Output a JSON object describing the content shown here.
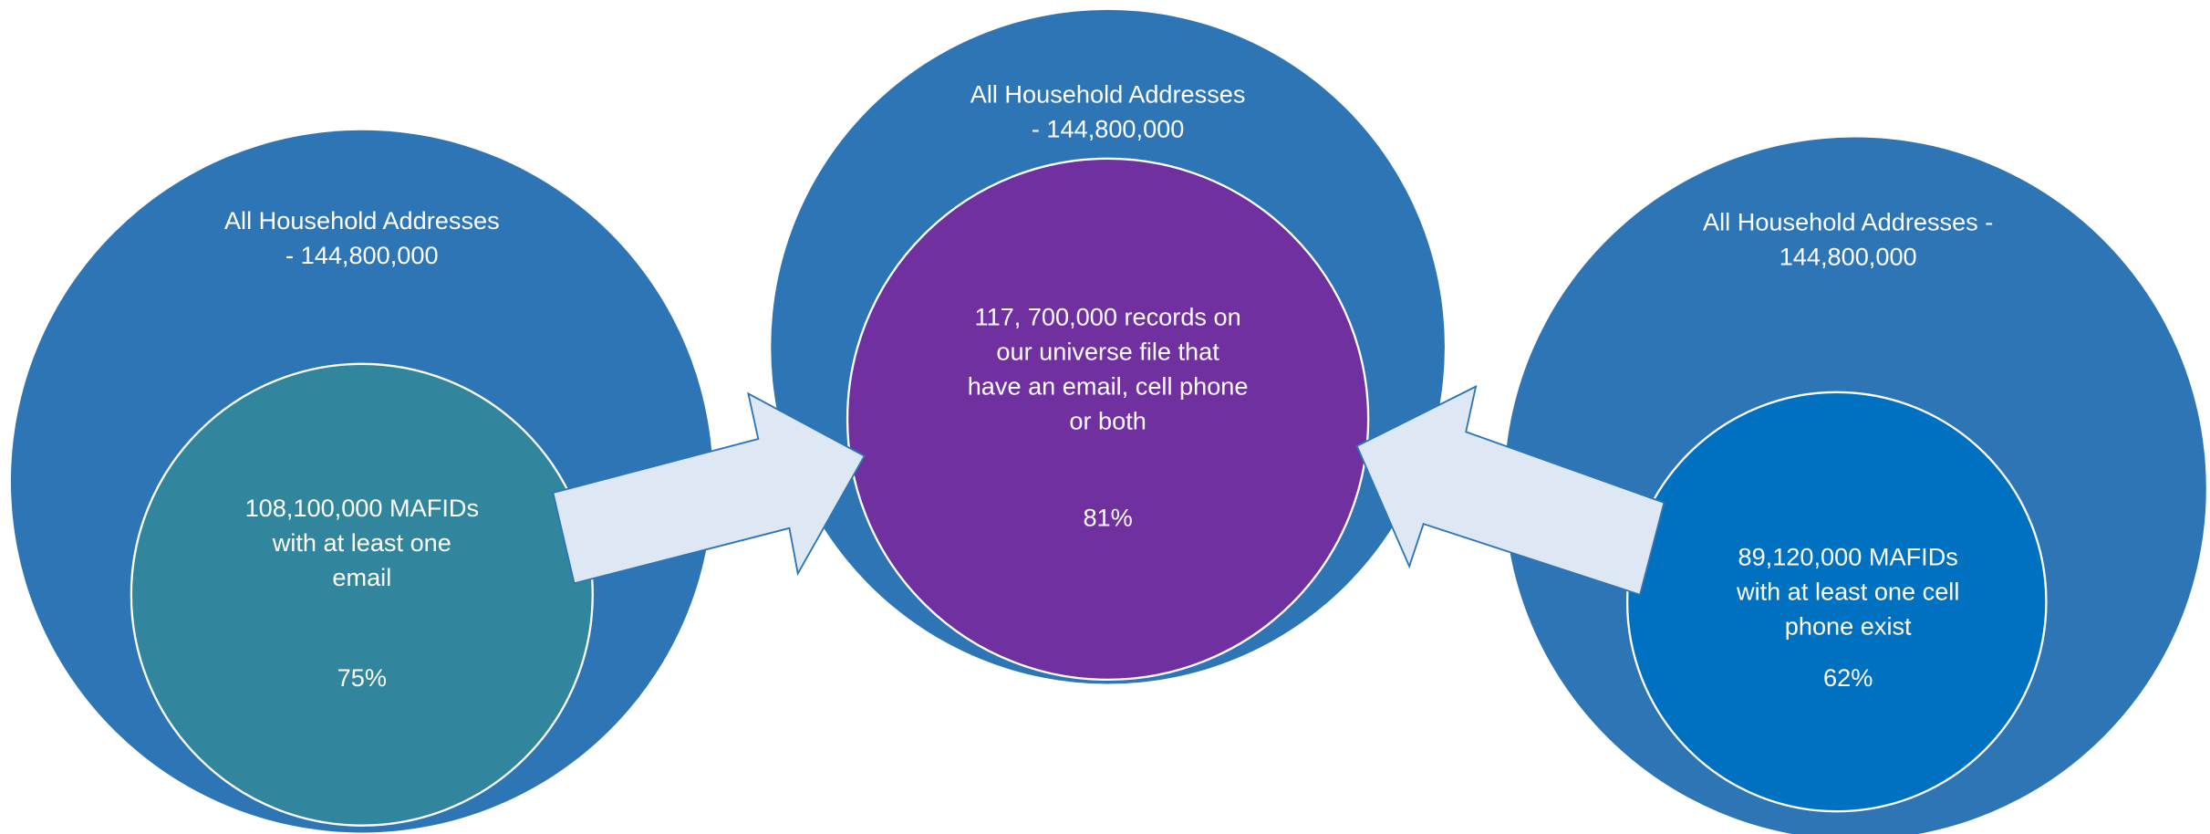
{
  "nodes": [
    {
      "outer_lines": [
        "All Household Addresses",
        "- 144,800,000"
      ],
      "inner_lines": [
        "108,100,000 MAFIDs",
        "with at least one",
        "email"
      ],
      "percent": "75%"
    },
    {
      "outer_lines": [
        "All Household Addresses",
        "- 144,800,000"
      ],
      "inner_lines": [
        "117, 700,000 records on",
        "our universe file that",
        "have an email, cell phone",
        "or both"
      ],
      "percent": "81%"
    },
    {
      "outer_lines": [
        "All Household Addresses -",
        "144,800,000"
      ],
      "inner_lines": [
        "89,120,000 MAFIDs",
        "with at least one cell",
        "phone exist"
      ],
      "percent": "62%"
    }
  ]
}
